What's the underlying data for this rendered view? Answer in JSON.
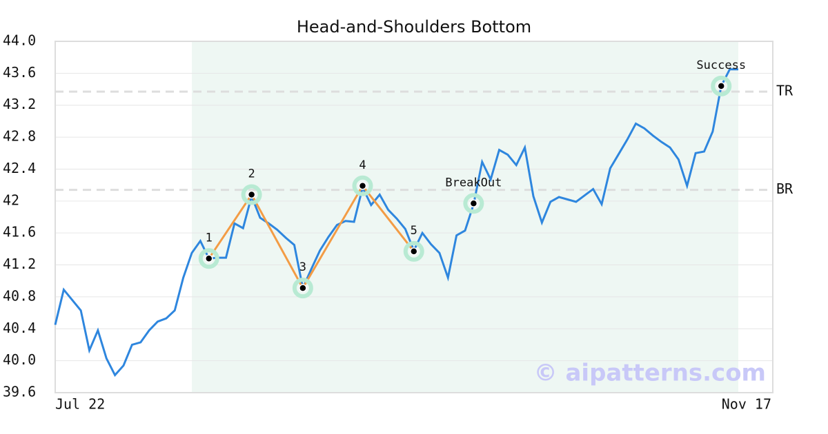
{
  "chart_data": {
    "type": "line",
    "title": "Head-and-Shoulders Bottom",
    "categories": [
      "Jul 22",
      null,
      null,
      null,
      null,
      null,
      null,
      null,
      null,
      null,
      null,
      null,
      null,
      null,
      null,
      null,
      null,
      null,
      null,
      null,
      null,
      null,
      null,
      null,
      null,
      null,
      null,
      null,
      null,
      null,
      null,
      null,
      null,
      null,
      null,
      null,
      null,
      null,
      null,
      null,
      null,
      null,
      null,
      null,
      null,
      null,
      null,
      null,
      null,
      null,
      null,
      null,
      null,
      null,
      null,
      null,
      null,
      null,
      null,
      null,
      null,
      null,
      null,
      null,
      null,
      null,
      null,
      null,
      null,
      null,
      null,
      null,
      null,
      null,
      null,
      null,
      null,
      null,
      null,
      null,
      "Nov 17"
    ],
    "values": [
      40.45,
      40.89,
      40.76,
      40.63,
      40.13,
      40.38,
      40.03,
      39.82,
      39.94,
      40.2,
      40.23,
      40.38,
      40.49,
      40.53,
      40.63,
      41.04,
      41.35,
      41.5,
      41.28,
      41.29,
      41.29,
      41.72,
      41.66,
      42.06,
      41.79,
      41.72,
      41.64,
      41.54,
      41.45,
      40.91,
      41.15,
      41.38,
      41.55,
      41.7,
      41.75,
      41.74,
      42.17,
      41.95,
      42.08,
      41.89,
      41.78,
      41.65,
      41.38,
      41.6,
      41.46,
      41.35,
      41.04,
      41.57,
      41.63,
      41.96,
      42.49,
      42.27,
      42.64,
      42.58,
      42.45,
      42.67,
      42.06,
      41.73,
      41.99,
      42.05,
      42.02,
      41.99,
      42.07,
      42.15,
      41.96,
      42.41,
      42.59,
      42.77,
      42.97,
      42.91,
      42.82,
      42.74,
      42.67,
      42.52,
      42.19,
      42.6,
      42.62,
      42.87,
      43.44,
      43.65,
      43.65
    ],
    "color": "#2e86de",
    "ylim": [
      39.6,
      44.0
    ],
    "yticks": [
      {
        "value": 39.6,
        "label": "39.6"
      },
      {
        "value": 40,
        "label": "40.0"
      },
      40.4,
      40.8,
      41.2,
      41.6,
      42,
      42.4,
      42.8,
      43.2,
      43.6,
      {
        "value": 44,
        "label": "44.0"
      }
    ],
    "grid": true,
    "highlight": [
      16,
      80
    ],
    "pattern_color": "#f39c45",
    "markers": [
      {
        "label": "1",
        "x": 18,
        "y": 41.28,
        "pattern": true
      },
      {
        "label": "2",
        "x": 23,
        "y": 42.08,
        "pattern": true
      },
      {
        "label": "3",
        "x": 29,
        "y": 40.91,
        "pattern": true
      },
      {
        "label": "4",
        "x": 36,
        "y": 42.19,
        "pattern": true
      },
      {
        "label": "5",
        "x": 42,
        "y": 41.37,
        "pattern": true
      },
      {
        "label": "BreakOut",
        "x": 49,
        "y": 41.97,
        "pattern": false
      },
      {
        "label": "Success",
        "x": 78,
        "y": 43.44,
        "pattern": false
      }
    ],
    "levels": [
      {
        "label": "TR",
        "value": 43.37
      },
      {
        "label": "BR",
        "value": 42.14
      }
    ],
    "watermark": "© aipatterns.com"
  }
}
